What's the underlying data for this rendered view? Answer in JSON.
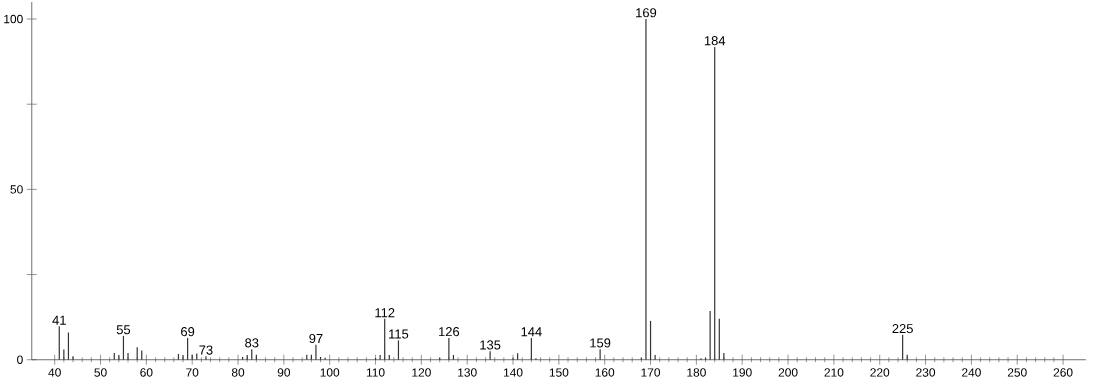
{
  "chart_data": {
    "type": "bar",
    "color": "#333333",
    "x": [
      41,
      42,
      43,
      44,
      53,
      54,
      55,
      56,
      58,
      59,
      67,
      68,
      69,
      70,
      71,
      73,
      81,
      82,
      83,
      84,
      95,
      96,
      97,
      98,
      99,
      110,
      111,
      112,
      113,
      115,
      124,
      126,
      127,
      135,
      140,
      141,
      144,
      145,
      159,
      168,
      169,
      170,
      171,
      181,
      182,
      183,
      184,
      185,
      186,
      225,
      226
    ],
    "values": [
      9.8,
      3,
      8,
      1,
      2,
      1.4,
      7,
      2,
      3.7,
      2.7,
      1.7,
      1.4,
      6.4,
      1.5,
      1.8,
      1,
      0.8,
      1.4,
      3.1,
      1.5,
      1.5,
      1.5,
      4.4,
      0.8,
      0.6,
      0.5,
      1.4,
      12,
      1.4,
      5.7,
      0.6,
      6.4,
      1.4,
      2.5,
      0.6,
      1.9,
      6.4,
      0.4,
      3.1,
      0.6,
      100,
      11.4,
      1.4,
      0.4,
      0.6,
      14.3,
      91.8,
      12,
      2,
      7.3,
      1.5
    ],
    "xlim": [
      35,
      265
    ],
    "xticks": [
      40,
      50,
      60,
      70,
      80,
      90,
      100,
      110,
      120,
      130,
      140,
      150,
      160,
      170,
      180,
      190,
      200,
      210,
      220,
      230,
      240,
      250,
      260
    ],
    "ylim": [
      0,
      105
    ],
    "yticks": [
      0,
      {
        "value": 25,
        "label": null
      },
      50,
      {
        "value": 75,
        "label": null
      },
      100
    ],
    "annotations": [
      {
        "text": "41",
        "x": 41,
        "y": 9.8
      },
      {
        "text": "55",
        "x": 55,
        "y": 7
      },
      {
        "text": "69",
        "x": 69,
        "y": 6.4
      },
      {
        "text": "73",
        "x": 73,
        "y": 1
      },
      {
        "text": "83",
        "x": 83,
        "y": 3.1
      },
      {
        "text": "97",
        "x": 97,
        "y": 4.4
      },
      {
        "text": "112",
        "x": 112,
        "y": 12
      },
      {
        "text": "115",
        "x": 115,
        "y": 5.7
      },
      {
        "text": "126",
        "x": 126,
        "y": 6.4
      },
      {
        "text": "135",
        "x": 135,
        "y": 2.5
      },
      {
        "text": "144",
        "x": 144,
        "y": 6.4
      },
      {
        "text": "159",
        "x": 159,
        "y": 3.1
      },
      {
        "text": "169",
        "x": 169,
        "y": 100
      },
      {
        "text": "184",
        "x": 184,
        "y": 91.8
      },
      {
        "text": "225",
        "x": 225,
        "y": 7.3
      }
    ]
  }
}
